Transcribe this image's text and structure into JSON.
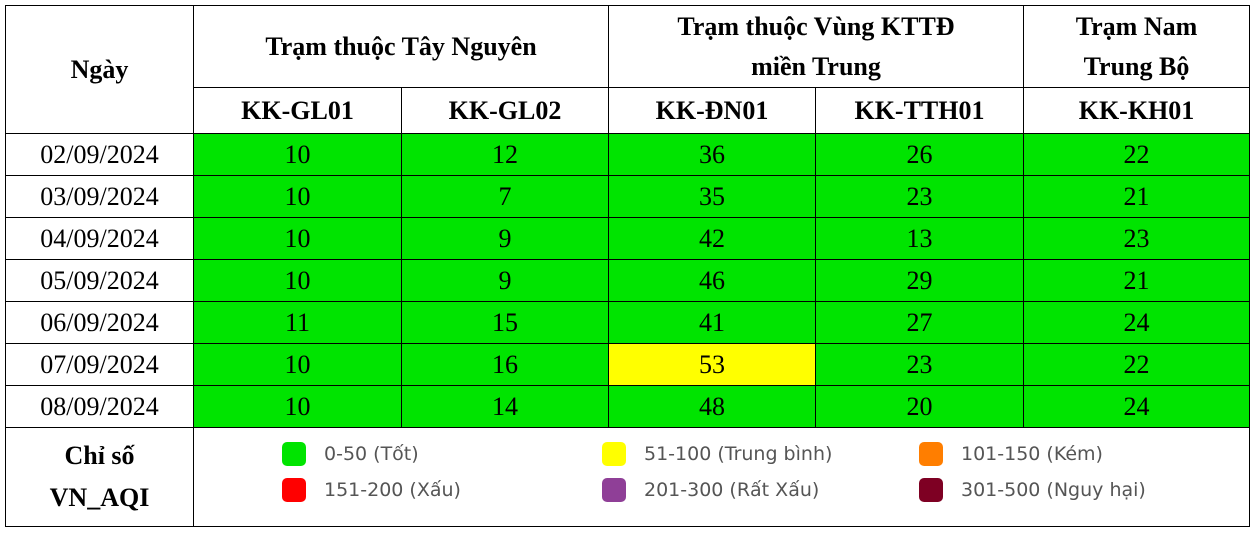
{
  "header": {
    "date_col": "Ngày",
    "groups": [
      {
        "label": "Trạm thuộc Tây Nguyên"
      },
      {
        "label_line1": "Trạm thuộc Vùng KTTĐ",
        "label_line2": "miền Trung"
      },
      {
        "label_line1": "Trạm Nam",
        "label_line2": "Trung Bộ"
      }
    ],
    "stations": [
      "KK-GL01",
      "KK-GL02",
      "KK-ĐN01",
      "KK-TTH01",
      "KK-KH01"
    ]
  },
  "rows": [
    {
      "date": "02/09/2024",
      "values": [
        "10",
        "12",
        "36",
        "26",
        "22"
      ],
      "levels": [
        "good",
        "good",
        "good",
        "good",
        "good"
      ]
    },
    {
      "date": "03/09/2024",
      "values": [
        "10",
        "7",
        "35",
        "23",
        "21"
      ],
      "levels": [
        "good",
        "good",
        "good",
        "good",
        "good"
      ]
    },
    {
      "date": "04/09/2024",
      "values": [
        "10",
        "9",
        "42",
        "13",
        "23"
      ],
      "levels": [
        "good",
        "good",
        "good",
        "good",
        "good"
      ]
    },
    {
      "date": "05/09/2024",
      "values": [
        "10",
        "9",
        "46",
        "29",
        "21"
      ],
      "levels": [
        "good",
        "good",
        "good",
        "good",
        "good"
      ]
    },
    {
      "date": "06/09/2024",
      "values": [
        "11",
        "15",
        "41",
        "27",
        "24"
      ],
      "levels": [
        "good",
        "good",
        "good",
        "good",
        "good"
      ]
    },
    {
      "date": "07/09/2024",
      "values": [
        "10",
        "16",
        "53",
        "23",
        "22"
      ],
      "levels": [
        "good",
        "good",
        "moderate",
        "good",
        "good"
      ]
    },
    {
      "date": "08/09/2024",
      "values": [
        "10",
        "14",
        "48",
        "20",
        "24"
      ],
      "levels": [
        "good",
        "good",
        "good",
        "good",
        "good"
      ]
    }
  ],
  "legend": {
    "label_line1": "Chỉ số",
    "label_line2": "VN_AQI",
    "items": [
      {
        "text": "0-50 (Tốt)",
        "color": "#00e400"
      },
      {
        "text": "51-100 (Trung bình)",
        "color": "#ffff00"
      },
      {
        "text": "101-150 (Kém)",
        "color": "#ff7e00"
      },
      {
        "text": "151-200 (Xấu)",
        "color": "#ff0000"
      },
      {
        "text": "201-300 (Rất Xấu)",
        "color": "#8f3f97"
      },
      {
        "text": "301-500 (Nguy hại)",
        "color": "#7e0023"
      }
    ]
  },
  "colors": {
    "good": "#00e400",
    "moderate": "#ffff00"
  }
}
